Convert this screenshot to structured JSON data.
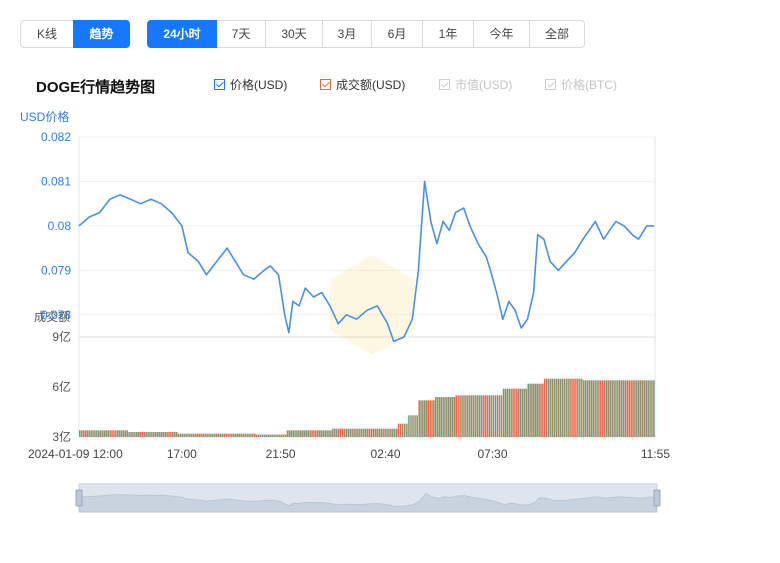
{
  "view_tabs": [
    "K线",
    "趋势"
  ],
  "range_tabs": [
    "24小时",
    "7天",
    "30天",
    "3月",
    "6月",
    "1年",
    "今年",
    "全部"
  ],
  "title": "DOGE行情趋势图",
  "legend": [
    {
      "label": "价格(USD)",
      "checked": true,
      "color": "#4a90e2"
    },
    {
      "label": "成交额(USD)",
      "checked": true,
      "color": "#e8674f"
    },
    {
      "label": "市值(USD)",
      "checked": false,
      "color": "#cfcfcf"
    },
    {
      "label": "价格(BTC)",
      "checked": false,
      "color": "#cfcfcf"
    }
  ],
  "price_axis_label": "USD价格",
  "volume_axis_label": "成交额",
  "colors": {
    "price_line": "#4a90e2",
    "vol_up": "#3cb48c",
    "vol_down": "#ea6a4e",
    "accent": "#1677ff"
  },
  "chart_data": {
    "type": "line",
    "xlabel": "",
    "ylabel": "USD价格",
    "x_ticks": [
      "2024-01-09 12:00",
      "17:00",
      "21:50",
      "02:40",
      "07:30",
      "11:55"
    ],
    "price_ticks": [
      "0.082",
      "0.081",
      "0.08",
      "0.079",
      "0.078"
    ],
    "ylim": [
      0.0775,
      0.082
    ],
    "price_series": [
      [
        0,
        0.08
      ],
      [
        0.5,
        0.0802
      ],
      [
        1,
        0.0803
      ],
      [
        1.5,
        0.0806
      ],
      [
        2,
        0.0807
      ],
      [
        2.5,
        0.0806
      ],
      [
        3,
        0.0805
      ],
      [
        3.5,
        0.0806
      ],
      [
        4,
        0.0805
      ],
      [
        4.5,
        0.0803
      ],
      [
        5,
        0.08
      ],
      [
        5.3,
        0.0794
      ],
      [
        5.8,
        0.0792
      ],
      [
        6.2,
        0.0789
      ],
      [
        6.7,
        0.0792
      ],
      [
        7.2,
        0.0795
      ],
      [
        7.6,
        0.0792
      ],
      [
        8,
        0.0789
      ],
      [
        8.5,
        0.0788
      ],
      [
        9,
        0.079
      ],
      [
        9.3,
        0.0791
      ],
      [
        9.7,
        0.0789
      ],
      [
        10,
        0.078
      ],
      [
        10.2,
        0.0776
      ],
      [
        10.4,
        0.0783
      ],
      [
        10.7,
        0.0782
      ],
      [
        11,
        0.0786
      ],
      [
        11.4,
        0.0784
      ],
      [
        11.8,
        0.0785
      ],
      [
        12.2,
        0.0782
      ],
      [
        12.6,
        0.0778
      ],
      [
        13,
        0.078
      ],
      [
        13.5,
        0.0779
      ],
      [
        14,
        0.0781
      ],
      [
        14.5,
        0.0782
      ],
      [
        15,
        0.0778
      ],
      [
        15.3,
        0.0774
      ],
      [
        15.8,
        0.0775
      ],
      [
        16.2,
        0.0779
      ],
      [
        16.5,
        0.079
      ],
      [
        16.8,
        0.081
      ],
      [
        17.1,
        0.0801
      ],
      [
        17.4,
        0.0796
      ],
      [
        17.7,
        0.0801
      ],
      [
        18,
        0.0799
      ],
      [
        18.3,
        0.0803
      ],
      [
        18.7,
        0.0804
      ],
      [
        19,
        0.08
      ],
      [
        19.4,
        0.0796
      ],
      [
        19.8,
        0.0793
      ],
      [
        20,
        0.079
      ],
      [
        20.3,
        0.0785
      ],
      [
        20.6,
        0.0779
      ],
      [
        20.9,
        0.0783
      ],
      [
        21.2,
        0.0781
      ],
      [
        21.5,
        0.0777
      ],
      [
        21.8,
        0.0779
      ],
      [
        22.1,
        0.0785
      ],
      [
        22.3,
        0.0798
      ],
      [
        22.6,
        0.0797
      ],
      [
        22.9,
        0.0792
      ],
      [
        23.3,
        0.079
      ],
      [
        23.7,
        0.0792
      ],
      [
        24.1,
        0.0794
      ],
      [
        24.5,
        0.0797
      ],
      [
        24.8,
        0.0799
      ],
      [
        25.1,
        0.0801
      ],
      [
        25.5,
        0.0797
      ],
      [
        25.8,
        0.0799
      ],
      [
        26.1,
        0.0801
      ],
      [
        26.5,
        0.08
      ],
      [
        26.9,
        0.0798
      ],
      [
        27.2,
        0.0797
      ],
      [
        27.6,
        0.08
      ],
      [
        27.95,
        0.08
      ]
    ],
    "volume_ticks": [
      "9亿",
      "6亿",
      "3亿"
    ],
    "volume_series": [
      {
        "start": 0,
        "end": 2.4,
        "value": 3.4
      },
      {
        "start": 2.4,
        "end": 4.8,
        "value": 3.3
      },
      {
        "start": 4.8,
        "end": 8.6,
        "value": 3.2
      },
      {
        "start": 8.6,
        "end": 10.1,
        "value": 3.15
      },
      {
        "start": 10.1,
        "end": 12.3,
        "value": 3.4
      },
      {
        "start": 12.3,
        "end": 15.5,
        "value": 3.5
      },
      {
        "start": 15.5,
        "end": 16.0,
        "value": 3.8
      },
      {
        "start": 16.0,
        "end": 16.5,
        "value": 4.3
      },
      {
        "start": 16.5,
        "end": 17.3,
        "value": 5.2
      },
      {
        "start": 17.3,
        "end": 18.3,
        "value": 5.4
      },
      {
        "start": 18.3,
        "end": 20.0,
        "value": 5.5
      },
      {
        "start": 20.0,
        "end": 20.6,
        "value": 5.5
      },
      {
        "start": 20.6,
        "end": 21.8,
        "value": 5.9
      },
      {
        "start": 21.8,
        "end": 22.6,
        "value": 6.2
      },
      {
        "start": 22.6,
        "end": 24.5,
        "value": 6.5
      },
      {
        "start": 24.5,
        "end": 28.0,
        "value": 6.4
      }
    ]
  }
}
